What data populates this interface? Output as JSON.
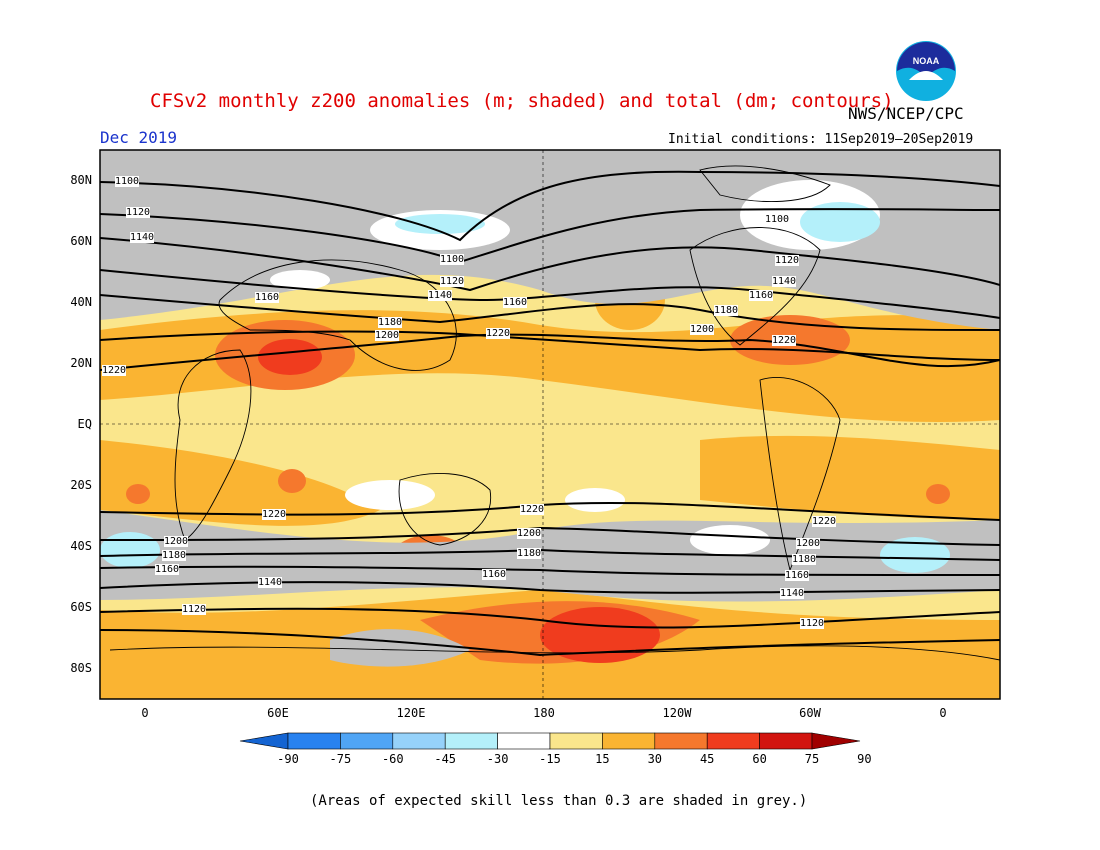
{
  "title": "CFSv2 monthly z200 anomalies (m; shaded) and total (dm; contours)",
  "agency": "NWS/NCEP/CPC",
  "logo_text": "NOAA",
  "month": "Dec 2019",
  "initial_conditions": "Initial conditions: 11Sep2019—20Sep2019",
  "lat_labels": [
    "80N",
    "60N",
    "40N",
    "20N",
    "EQ",
    "20S",
    "40S",
    "60S",
    "80S"
  ],
  "lon_labels": [
    "0",
    "60E",
    "120E",
    "180",
    "120W",
    "60W",
    "0"
  ],
  "colorbar": {
    "values": [
      "-90",
      "-75",
      "-60",
      "-45",
      "-30",
      "-15",
      "15",
      "30",
      "45",
      "60",
      "75",
      "90"
    ],
    "colors": [
      "#1464d2",
      "#2882f0",
      "#50a5f5",
      "#96d2fa",
      "#b4f0fa",
      "#ffffff",
      "#fae68c",
      "#fab432",
      "#f5782d",
      "#f03c1e",
      "#d2140f",
      "#a00000"
    ]
  },
  "contour_labels": [
    {
      "text": "1100"
    },
    {
      "text": "1120"
    },
    {
      "text": "1140"
    },
    {
      "text": "1160"
    },
    {
      "text": "1180"
    },
    {
      "text": "1200"
    },
    {
      "text": "1220"
    }
  ],
  "note": "(Areas of expected skill less than 0.3 are shaded in grey.)"
}
